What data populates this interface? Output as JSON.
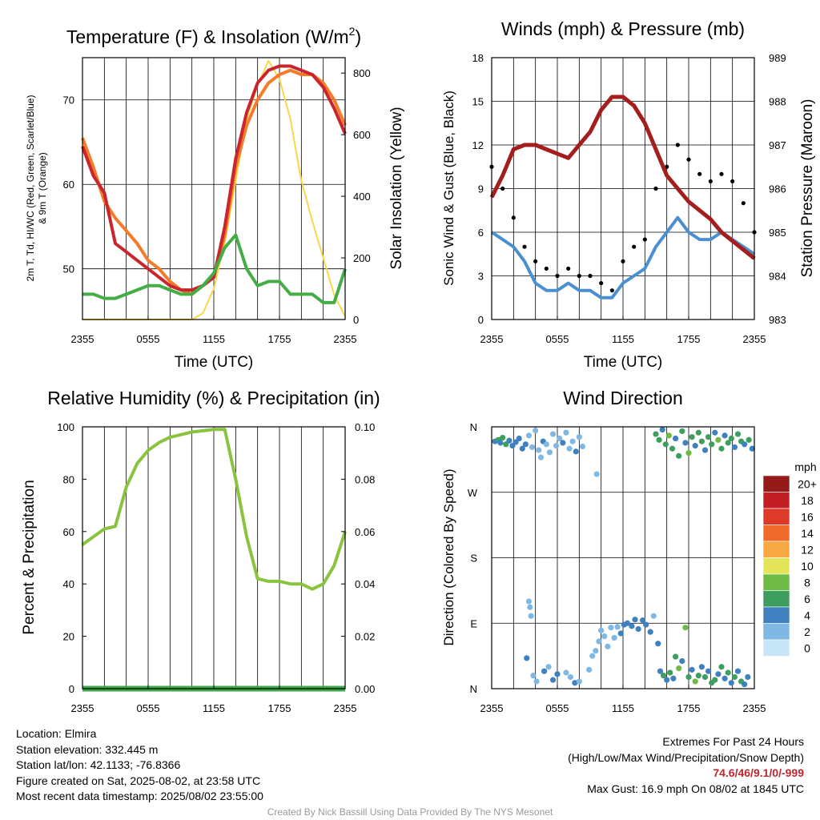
{
  "chart_data": [
    {
      "type": "line",
      "title": "Temperature (F) & Insolation (W/m²)",
      "title_text": "Temperature (F) & Insolation (W/m",
      "title_sup": "2",
      "title_end": ")",
      "xlabel": "Time (UTC)",
      "ylabel_left_line1": "2m T, Td, HI/WC (Red, Green, Scarlet/Blue)",
      "ylabel_left_line2": "& 9m T (Orange)",
      "ylabel_right": "Solar Insolation (Yellow)",
      "x_ticks": [
        "2355",
        "0555",
        "1155",
        "1755",
        "2355"
      ],
      "y_left_ticks": [
        50,
        60,
        70
      ],
      "y_left_range": [
        44,
        75
      ],
      "y_right_ticks": [
        0,
        200,
        400,
        600,
        800
      ],
      "y_right_range": [
        0,
        850
      ],
      "x_hours": [
        0,
        1,
        2,
        3,
        4,
        5,
        6,
        7,
        8,
        9,
        10,
        11,
        12,
        13,
        14,
        15,
        16,
        17,
        18,
        19,
        20,
        21,
        22,
        23,
        24
      ],
      "series": [
        {
          "name": "Solar Insolation",
          "axis": "right",
          "color": "#f5d94a",
          "values": [
            0,
            0,
            0,
            0,
            0,
            0,
            0,
            0,
            0,
            0,
            0,
            20,
            100,
            250,
            450,
            650,
            760,
            840,
            780,
            650,
            450,
            320,
            200,
            80,
            10
          ]
        },
        {
          "name": "9m T",
          "axis": "left",
          "color": "#f57a2a",
          "values": [
            65.5,
            62,
            58,
            56,
            54.5,
            53,
            51,
            50,
            48.5,
            47.5,
            47,
            48,
            49,
            54,
            62,
            67,
            70,
            72,
            73,
            73.5,
            73,
            73,
            72,
            70,
            67
          ]
        },
        {
          "name": "2m T",
          "axis": "left",
          "color": "#c8252d",
          "values": [
            64.5,
            61,
            59,
            53,
            52,
            51,
            50,
            49,
            48,
            47.5,
            47.5,
            48,
            49,
            55,
            63,
            68.5,
            72,
            73.5,
            74,
            74,
            73.5,
            73,
            71.5,
            69,
            66
          ]
        },
        {
          "name": "Td",
          "axis": "left",
          "color": "#45ad45",
          "values": [
            47,
            47,
            46.5,
            46.5,
            47,
            47.5,
            48,
            48,
            47.5,
            47,
            47,
            48,
            49.5,
            52.5,
            54,
            50,
            48,
            48.5,
            48.5,
            47,
            47,
            47,
            46,
            46,
            50
          ]
        }
      ]
    },
    {
      "type": "line",
      "title": "Winds (mph) & Pressure (mb)",
      "xlabel": "Time (UTC)",
      "ylabel_left": "Sonic Wind & Gust (Blue, Black)",
      "ylabel_right": "Station Pressure (Maroon)",
      "x_ticks": [
        "2355",
        "0555",
        "1155",
        "1755",
        "2355"
      ],
      "y_left_ticks": [
        0,
        3,
        6,
        9,
        12,
        15,
        18
      ],
      "y_left_range": [
        0,
        18
      ],
      "y_right_ticks": [
        983,
        984,
        985,
        986,
        987,
        988,
        989
      ],
      "y_right_range": [
        983,
        989
      ],
      "x_hours": [
        0,
        1,
        2,
        3,
        4,
        5,
        6,
        7,
        8,
        9,
        10,
        11,
        12,
        13,
        14,
        15,
        16,
        17,
        18,
        19,
        20,
        21,
        22,
        23,
        24
      ],
      "series": [
        {
          "name": "Sonic Wind",
          "axis": "left",
          "color": "#4a90d0",
          "values": [
            6,
            5.5,
            5,
            4,
            2.5,
            2,
            2,
            2.5,
            2,
            2,
            1.5,
            1.5,
            2.5,
            3,
            3.5,
            5,
            6,
            7,
            6,
            5.5,
            5.5,
            6,
            5.5,
            5,
            4.5
          ]
        },
        {
          "name": "Gust",
          "axis": "left",
          "color": "#000000",
          "values": [
            10.5,
            9,
            7,
            5,
            4,
            3.5,
            3,
            3.5,
            3,
            3,
            2.5,
            2,
            4,
            5,
            5.5,
            9,
            10.5,
            12,
            11,
            10,
            9.5,
            10,
            9.5,
            8,
            6
          ]
        },
        {
          "name": "Station Pressure",
          "axis": "right",
          "color": "#a41e1e",
          "values": [
            985.8,
            986.3,
            986.9,
            987.0,
            987.0,
            986.9,
            986.8,
            986.7,
            987.0,
            987.3,
            987.8,
            988.1,
            988.1,
            987.9,
            987.5,
            986.9,
            986.3,
            986.0,
            985.7,
            985.5,
            985.3,
            985.0,
            984.8,
            984.6,
            984.4
          ]
        }
      ]
    },
    {
      "type": "line",
      "title": "Relative Humidity (%) & Precipitation (in)",
      "ylabel_left": "Percent & Precipitation",
      "x_ticks": [
        "2355",
        "0555",
        "1155",
        "1755",
        "2355"
      ],
      "y_left_ticks": [
        0,
        20,
        40,
        60,
        80,
        100
      ],
      "y_left_range": [
        0,
        100
      ],
      "y_right_ticks": [
        "0.00",
        "0.02",
        "0.04",
        "0.06",
        "0.08",
        "0.10"
      ],
      "y_right_range": [
        0,
        0.1
      ],
      "x_hours": [
        0,
        1,
        2,
        3,
        4,
        5,
        6,
        7,
        8,
        9,
        10,
        11,
        12,
        13,
        14,
        15,
        16,
        17,
        18,
        19,
        20,
        21,
        22,
        23,
        24
      ],
      "series": [
        {
          "name": "Relative Humidity",
          "axis": "left",
          "color": "#8ac43f",
          "values": [
            55,
            58,
            61,
            62,
            77,
            86,
            91,
            94,
            96,
            97,
            98,
            98.5,
            99,
            99,
            80,
            58,
            42,
            41,
            41,
            40,
            40,
            38,
            40,
            47,
            60
          ]
        },
        {
          "name": "Precipitation",
          "axis": "right",
          "color": "#3ea84a",
          "values": [
            0,
            0,
            0,
            0,
            0,
            0,
            0,
            0,
            0,
            0,
            0,
            0,
            0,
            0,
            0,
            0,
            0,
            0,
            0,
            0,
            0,
            0,
            0,
            0,
            0
          ]
        }
      ]
    },
    {
      "type": "scatter",
      "title": "Wind Direction",
      "ylabel_left": "Direction (Colored By Speed)",
      "x_ticks": [
        "2355",
        "0555",
        "1155",
        "1755",
        "2355"
      ],
      "y_ticks": [
        "N",
        "E",
        "S",
        "W",
        "N"
      ],
      "y_range": [
        0,
        360
      ],
      "legend_title": "mph",
      "legend_labels": [
        "0",
        "2",
        "4",
        "6",
        "8",
        "10",
        "12",
        "14",
        "16",
        "18",
        "20+"
      ],
      "legend_colors": [
        "#c6e6f7",
        "#7fb8e3",
        "#3e80c0",
        "#3d9e5e",
        "#6fba45",
        "#e4e45a",
        "#f6a943",
        "#ef6a2b",
        "#dd3a2a",
        "#c21e26",
        "#951b1b"
      ],
      "points": [
        {
          "t": 0.3,
          "dir": 340,
          "spd": 4
        },
        {
          "t": 0.6,
          "dir": 342,
          "spd": 6
        },
        {
          "t": 0.8,
          "dir": 338,
          "spd": 4
        },
        {
          "t": 1.0,
          "dir": 345,
          "spd": 6
        },
        {
          "t": 1.3,
          "dir": 336,
          "spd": 5
        },
        {
          "t": 1.6,
          "dir": 341,
          "spd": 4
        },
        {
          "t": 1.9,
          "dir": 334,
          "spd": 4
        },
        {
          "t": 2.2,
          "dir": 339,
          "spd": 3
        },
        {
          "t": 2.5,
          "dir": 344,
          "spd": 3
        },
        {
          "t": 2.8,
          "dir": 330,
          "spd": 3
        },
        {
          "t": 3.1,
          "dir": 336,
          "spd": 4
        },
        {
          "t": 3.4,
          "dir": 348,
          "spd": 2
        },
        {
          "t": 3.7,
          "dir": 332,
          "spd": 2
        },
        {
          "t": 4.0,
          "dir": 355,
          "spd": 2
        },
        {
          "t": 4.3,
          "dir": 328,
          "spd": 2
        },
        {
          "t": 4.5,
          "dir": 318,
          "spd": 1
        },
        {
          "t": 4.7,
          "dir": 340,
          "spd": 3
        },
        {
          "t": 5.0,
          "dir": 336,
          "spd": 2
        },
        {
          "t": 5.3,
          "dir": 325,
          "spd": 1
        },
        {
          "t": 5.6,
          "dir": 350,
          "spd": 1
        },
        {
          "t": 5.9,
          "dir": 334,
          "spd": 2
        },
        {
          "t": 6.2,
          "dir": 344,
          "spd": 2
        },
        {
          "t": 6.5,
          "dir": 338,
          "spd": 3
        },
        {
          "t": 6.8,
          "dir": 352,
          "spd": 1
        },
        {
          "t": 7.1,
          "dir": 330,
          "spd": 2
        },
        {
          "t": 7.4,
          "dir": 340,
          "spd": 2
        },
        {
          "t": 7.7,
          "dir": 326,
          "spd": 3
        },
        {
          "t": 8.0,
          "dir": 346,
          "spd": 1
        },
        {
          "t": 8.3,
          "dir": 333,
          "spd": 2
        },
        {
          "t": 9.6,
          "dir": 295,
          "spd": 1
        },
        {
          "t": 3.4,
          "dir": 120,
          "spd": 1
        },
        {
          "t": 3.5,
          "dir": 112,
          "spd": 1
        },
        {
          "t": 3.6,
          "dir": 100,
          "spd": 1
        },
        {
          "t": 3.2,
          "dir": 42,
          "spd": 3
        },
        {
          "t": 3.8,
          "dir": 18,
          "spd": 2
        },
        {
          "t": 4.1,
          "dir": 10,
          "spd": 2
        },
        {
          "t": 4.8,
          "dir": 24,
          "spd": 3
        },
        {
          "t": 5.2,
          "dir": 30,
          "spd": 2
        },
        {
          "t": 5.6,
          "dir": 12,
          "spd": 3
        },
        {
          "t": 6.0,
          "dir": 20,
          "spd": 3
        },
        {
          "t": 6.8,
          "dir": 22,
          "spd": 2
        },
        {
          "t": 7.2,
          "dir": 16,
          "spd": 2
        },
        {
          "t": 7.6,
          "dir": 8,
          "spd": 3
        },
        {
          "t": 8.0,
          "dir": 10,
          "spd": 2
        },
        {
          "t": 8.9,
          "dir": 26,
          "spd": 1
        },
        {
          "t": 9.2,
          "dir": 45,
          "spd": 1
        },
        {
          "t": 9.5,
          "dir": 52,
          "spd": 1
        },
        {
          "t": 9.8,
          "dir": 65,
          "spd": 2
        },
        {
          "t": 10.0,
          "dir": 80,
          "spd": 2
        },
        {
          "t": 10.3,
          "dir": 72,
          "spd": 2
        },
        {
          "t": 10.6,
          "dir": 58,
          "spd": 1
        },
        {
          "t": 10.9,
          "dir": 84,
          "spd": 1
        },
        {
          "t": 11.2,
          "dir": 70,
          "spd": 2
        },
        {
          "t": 11.5,
          "dir": 85,
          "spd": 2
        },
        {
          "t": 11.8,
          "dir": 76,
          "spd": 3
        },
        {
          "t": 12.1,
          "dir": 88,
          "spd": 3
        },
        {
          "t": 12.4,
          "dir": 90,
          "spd": 3
        },
        {
          "t": 12.8,
          "dir": 86,
          "spd": 3
        },
        {
          "t": 13.1,
          "dir": 95,
          "spd": 3
        },
        {
          "t": 13.4,
          "dir": 82,
          "spd": 4
        },
        {
          "t": 13.8,
          "dir": 94,
          "spd": 3
        },
        {
          "t": 14.1,
          "dir": 88,
          "spd": 4
        },
        {
          "t": 14.5,
          "dir": 78,
          "spd": 3
        },
        {
          "t": 14.8,
          "dir": 100,
          "spd": 2
        },
        {
          "t": 15.2,
          "dir": 62,
          "spd": 3
        },
        {
          "t": 15.4,
          "dir": 24,
          "spd": 4
        },
        {
          "t": 15.7,
          "dir": 18,
          "spd": 5
        },
        {
          "t": 16.0,
          "dir": 12,
          "spd": 4
        },
        {
          "t": 16.3,
          "dir": 22,
          "spd": 6
        },
        {
          "t": 16.6,
          "dir": 14,
          "spd": 4
        },
        {
          "t": 16.8,
          "dir": 44,
          "spd": 5
        },
        {
          "t": 17.1,
          "dir": 28,
          "spd": 7
        },
        {
          "t": 17.4,
          "dir": 38,
          "spd": 4
        },
        {
          "t": 17.7,
          "dir": 84,
          "spd": 7
        },
        {
          "t": 18.0,
          "dir": 16,
          "spd": 6
        },
        {
          "t": 18.3,
          "dir": 26,
          "spd": 4
        },
        {
          "t": 18.6,
          "dir": 10,
          "spd": 7
        },
        {
          "t": 18.9,
          "dir": 18,
          "spd": 5
        },
        {
          "t": 19.2,
          "dir": 30,
          "spd": 4
        },
        {
          "t": 19.5,
          "dir": 16,
          "spd": 6
        },
        {
          "t": 19.8,
          "dir": 24,
          "spd": 4
        },
        {
          "t": 20.1,
          "dir": 8,
          "spd": 5
        },
        {
          "t": 20.4,
          "dir": 12,
          "spd": 6
        },
        {
          "t": 20.7,
          "dir": 20,
          "spd": 4
        },
        {
          "t": 21.0,
          "dir": 30,
          "spd": 6
        },
        {
          "t": 21.3,
          "dir": 14,
          "spd": 4
        },
        {
          "t": 21.6,
          "dir": 22,
          "spd": 5
        },
        {
          "t": 21.9,
          "dir": 8,
          "spd": 4
        },
        {
          "t": 22.2,
          "dir": 16,
          "spd": 6
        },
        {
          "t": 22.5,
          "dir": 24,
          "spd": 4
        },
        {
          "t": 22.8,
          "dir": 10,
          "spd": 5
        },
        {
          "t": 23.1,
          "dir": 6,
          "spd": 4
        },
        {
          "t": 23.4,
          "dir": 16,
          "spd": 4
        },
        {
          "t": 15.0,
          "dir": 350,
          "spd": 6
        },
        {
          "t": 15.3,
          "dir": 342,
          "spd": 5
        },
        {
          "t": 15.6,
          "dir": 356,
          "spd": 4
        },
        {
          "t": 15.9,
          "dir": 336,
          "spd": 6
        },
        {
          "t": 16.2,
          "dir": 348,
          "spd": 7
        },
        {
          "t": 16.5,
          "dir": 330,
          "spd": 5
        },
        {
          "t": 16.8,
          "dir": 344,
          "spd": 4
        },
        {
          "t": 17.1,
          "dir": 320,
          "spd": 6
        },
        {
          "t": 17.4,
          "dir": 354,
          "spd": 5
        },
        {
          "t": 17.7,
          "dir": 338,
          "spd": 4
        },
        {
          "t": 18.0,
          "dir": 324,
          "spd": 7
        },
        {
          "t": 18.3,
          "dir": 346,
          "spd": 6
        },
        {
          "t": 18.6,
          "dir": 334,
          "spd": 4
        },
        {
          "t": 18.9,
          "dir": 352,
          "spd": 5
        },
        {
          "t": 19.2,
          "dir": 340,
          "spd": 6
        },
        {
          "t": 19.5,
          "dir": 328,
          "spd": 4
        },
        {
          "t": 19.8,
          "dir": 346,
          "spd": 5
        },
        {
          "t": 20.1,
          "dir": 336,
          "spd": 6
        },
        {
          "t": 20.4,
          "dir": 352,
          "spd": 4
        },
        {
          "t": 20.7,
          "dir": 342,
          "spd": 7
        },
        {
          "t": 21.0,
          "dir": 330,
          "spd": 5
        },
        {
          "t": 21.3,
          "dir": 348,
          "spd": 4
        },
        {
          "t": 21.6,
          "dir": 338,
          "spd": 6
        },
        {
          "t": 21.9,
          "dir": 344,
          "spd": 5
        },
        {
          "t": 22.2,
          "dir": 332,
          "spd": 4
        },
        {
          "t": 22.5,
          "dir": 350,
          "spd": 6
        },
        {
          "t": 22.8,
          "dir": 340,
          "spd": 5
        },
        {
          "t": 23.1,
          "dir": 336,
          "spd": 4
        },
        {
          "t": 23.5,
          "dir": 342,
          "spd": 5
        },
        {
          "t": 23.8,
          "dir": 330,
          "spd": 4
        }
      ]
    }
  ],
  "footer": {
    "location": "Location: Elmira",
    "elevation": "Station elevation: 332.445 m",
    "latlon": "Station lat/lon: 42.1133; -76.8366",
    "created": "Figure created on Sat, 2025-08-02, at 23:58 UTC",
    "recent": "Most recent data timestamp: 2025/08/02 23:55:00",
    "extremes_title": "Extremes For Past 24 Hours",
    "extremes_desc": "(High/Low/Max Wind/Precipitation/Snow Depth)",
    "extremes_values": "74.6/46/9.1/0/-999",
    "max_gust": "Max Gust: 16.9 mph On 08/02 at 1845 UTC",
    "credit": "Created By Nick Bassill Using Data Provided By The NYS Mesonet"
  }
}
